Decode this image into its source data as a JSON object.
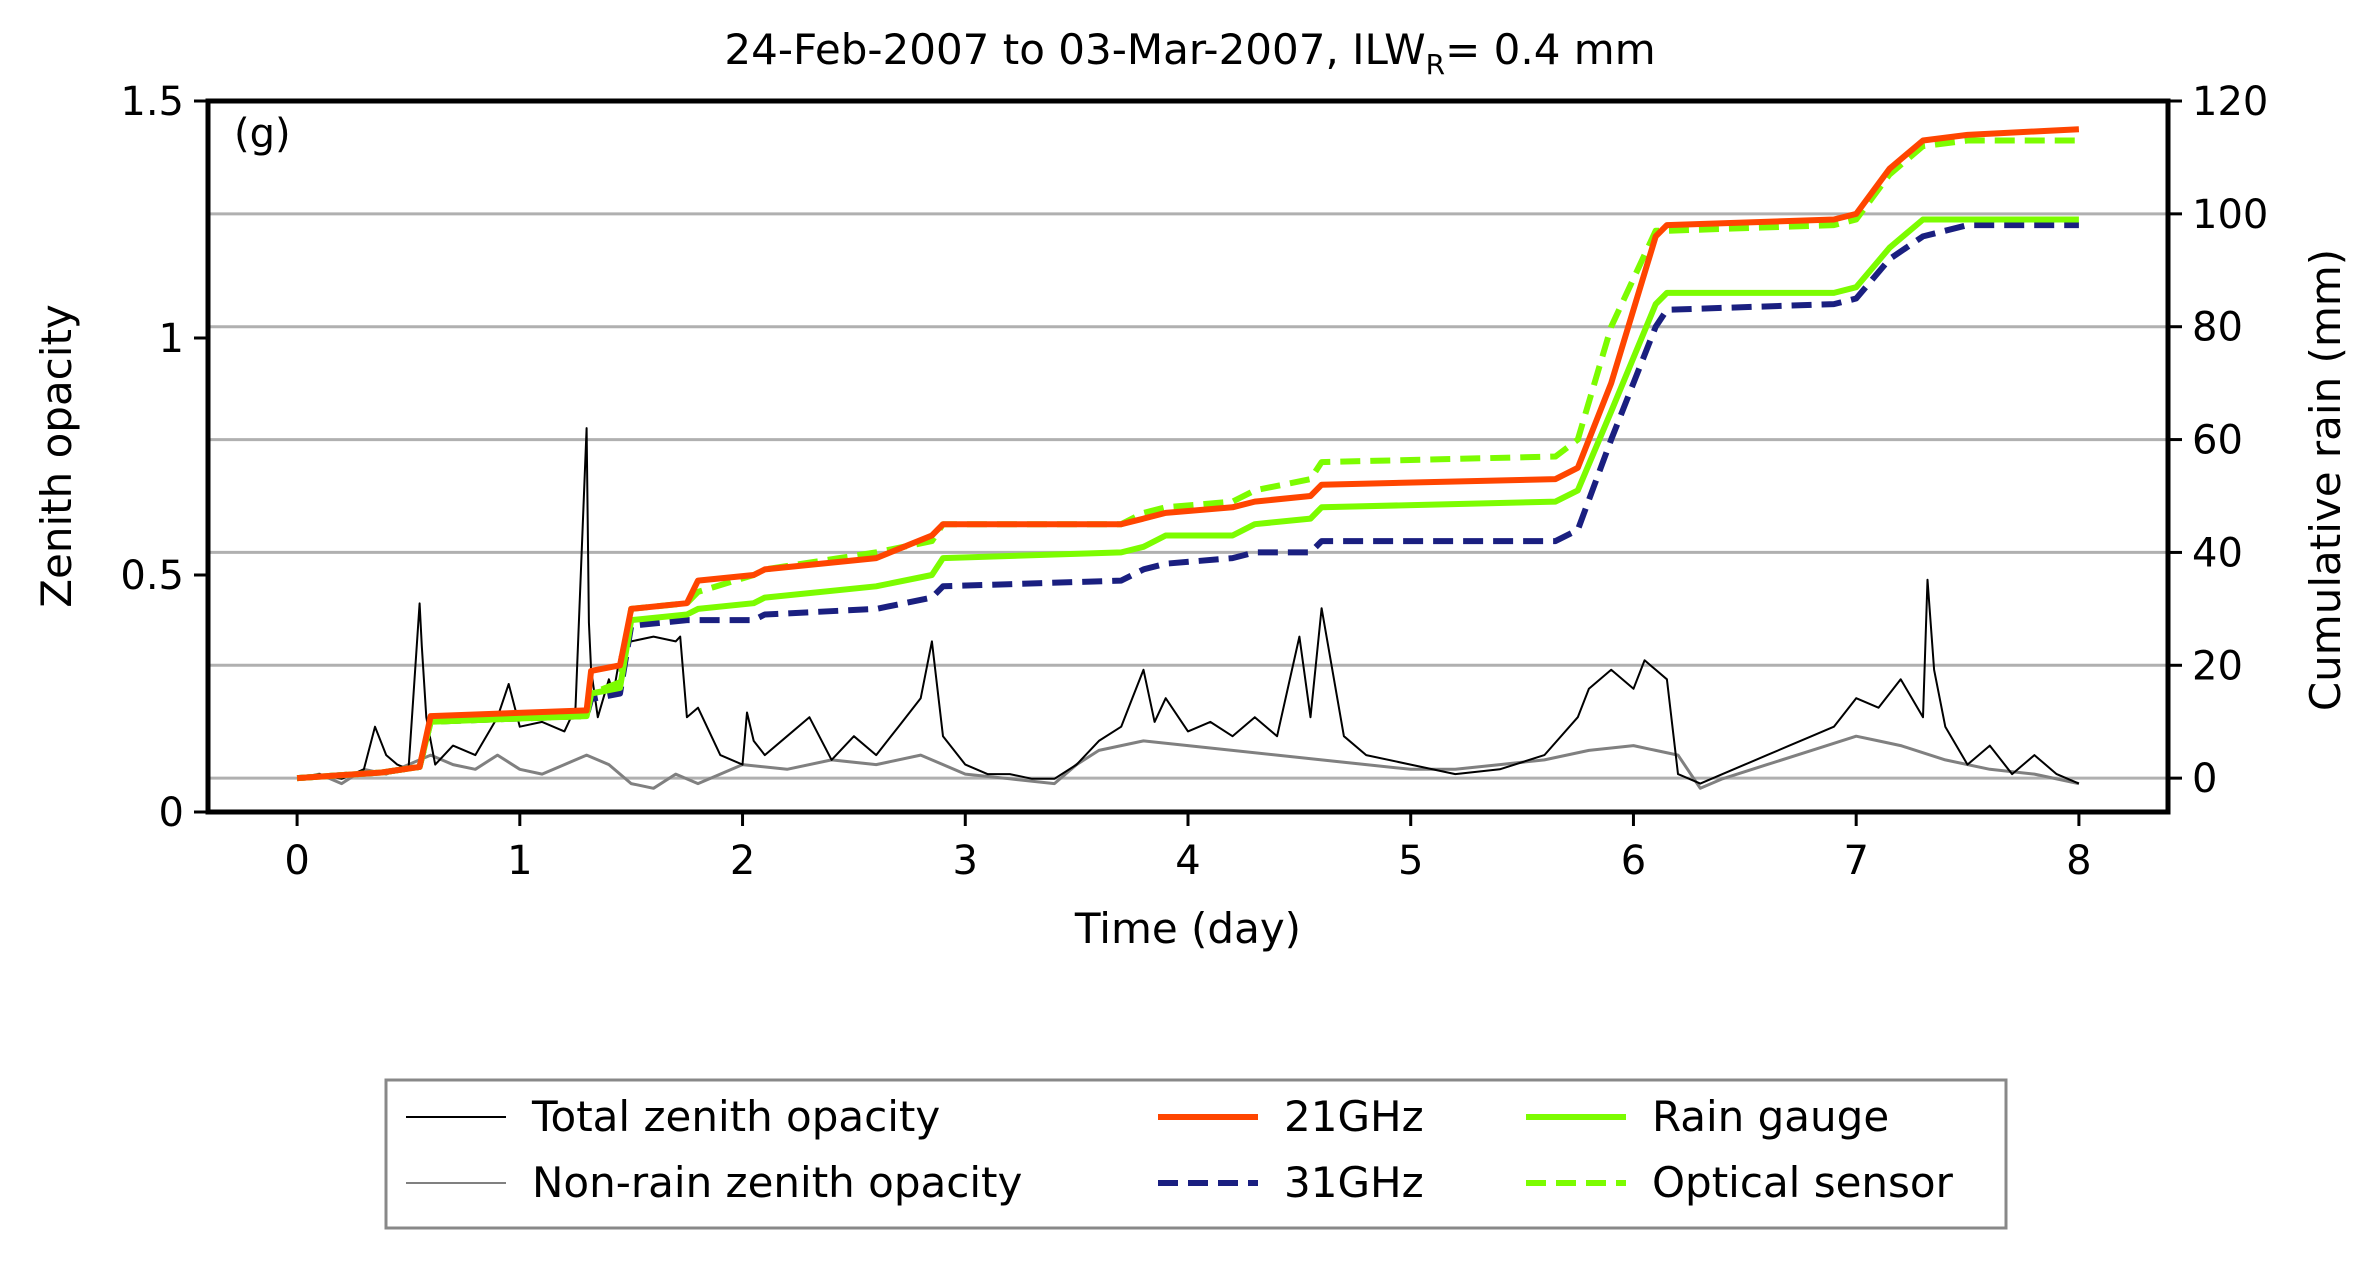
{
  "chart_data": {
    "type": "line",
    "title_main": "24-Feb-2007 to 03-Mar-2007, ILW",
    "title_sub": "R",
    "title_tail": "= 0.4 mm",
    "panel_label": "(g)",
    "xlabel": "Time (day)",
    "ylabel_left": "Zenith opacity",
    "ylabel_right": "Cumulative rain (mm)",
    "xlim": [
      -0.4,
      8.4
    ],
    "ylim_left": [
      0,
      1.5
    ],
    "ylim_right": [
      -6,
      120
    ],
    "x_ticks": [
      "0",
      "1",
      "2",
      "3",
      "4",
      "5",
      "6",
      "7",
      "8"
    ],
    "y_left_ticks": [
      "0",
      "0.5",
      "1",
      "1.5"
    ],
    "y_right_ticks": [
      "0",
      "20",
      "40",
      "60",
      "80",
      "100",
      "120"
    ],
    "right_gridlines": [
      0,
      20,
      40,
      60,
      80,
      100
    ],
    "series": [
      {
        "name": "Total zenith opacity",
        "axis": "left",
        "color": "#000000",
        "style": "solid",
        "width": 2,
        "x": [
          0,
          0.1,
          0.2,
          0.3,
          0.35,
          0.4,
          0.45,
          0.5,
          0.55,
          0.56,
          0.58,
          0.6,
          0.62,
          0.7,
          0.8,
          0.9,
          0.95,
          1.0,
          1.1,
          1.2,
          1.25,
          1.3,
          1.31,
          1.32,
          1.35,
          1.4,
          1.42,
          1.45,
          1.5,
          1.6,
          1.7,
          1.72,
          1.75,
          1.8,
          1.9,
          2.0,
          2.02,
          2.05,
          2.1,
          2.2,
          2.3,
          2.4,
          2.5,
          2.6,
          2.7,
          2.8,
          2.85,
          2.9,
          3.0,
          3.1,
          3.2,
          3.3,
          3.4,
          3.5,
          3.6,
          3.7,
          3.75,
          3.8,
          3.85,
          3.9,
          4.0,
          4.1,
          4.2,
          4.3,
          4.4,
          4.5,
          4.55,
          4.6,
          4.7,
          4.8,
          5.0,
          5.2,
          5.4,
          5.6,
          5.75,
          5.8,
          5.9,
          6.0,
          6.05,
          6.1,
          6.15,
          6.2,
          6.3,
          6.4,
          6.5,
          6.6,
          6.7,
          6.8,
          6.9,
          7.0,
          7.1,
          7.2,
          7.25,
          7.3,
          7.32,
          7.35,
          7.4,
          7.5,
          7.6,
          7.7,
          7.8,
          7.9,
          8.0
        ],
        "values": [
          0.07,
          0.08,
          0.07,
          0.09,
          0.18,
          0.12,
          0.1,
          0.09,
          0.44,
          0.35,
          0.2,
          0.15,
          0.1,
          0.14,
          0.12,
          0.2,
          0.27,
          0.18,
          0.19,
          0.17,
          0.22,
          0.81,
          0.4,
          0.3,
          0.2,
          0.28,
          0.25,
          0.33,
          0.36,
          0.37,
          0.36,
          0.37,
          0.2,
          0.22,
          0.12,
          0.1,
          0.21,
          0.15,
          0.12,
          0.16,
          0.2,
          0.11,
          0.16,
          0.12,
          0.18,
          0.24,
          0.36,
          0.16,
          0.1,
          0.08,
          0.08,
          0.07,
          0.07,
          0.1,
          0.15,
          0.18,
          0.24,
          0.3,
          0.19,
          0.24,
          0.17,
          0.19,
          0.16,
          0.2,
          0.16,
          0.37,
          0.2,
          0.43,
          0.16,
          0.12,
          0.1,
          0.08,
          0.09,
          0.12,
          0.2,
          0.26,
          0.3,
          0.26,
          0.32,
          0.3,
          0.28,
          0.08,
          0.06,
          0.08,
          0.1,
          0.12,
          0.14,
          0.16,
          0.18,
          0.24,
          0.22,
          0.28,
          0.24,
          0.2,
          0.49,
          0.3,
          0.18,
          0.1,
          0.14,
          0.08,
          0.12,
          0.08,
          0.06
        ]
      },
      {
        "name": "Non-rain zenith opacity",
        "axis": "left",
        "color": "#808080",
        "style": "solid",
        "width": 3,
        "x": [
          0,
          0.1,
          0.2,
          0.3,
          0.4,
          0.5,
          0.6,
          0.7,
          0.8,
          0.9,
          1.0,
          1.1,
          1.2,
          1.3,
          1.4,
          1.5,
          1.6,
          1.7,
          1.8,
          1.9,
          2.0,
          2.2,
          2.4,
          2.6,
          2.8,
          3.0,
          3.2,
          3.4,
          3.5,
          3.6,
          3.8,
          4.0,
          4.2,
          4.4,
          4.6,
          4.8,
          5.0,
          5.2,
          5.4,
          5.6,
          5.8,
          6.0,
          6.1,
          6.2,
          6.3,
          6.4,
          6.6,
          6.8,
          7.0,
          7.1,
          7.2,
          7.4,
          7.6,
          7.8,
          8.0
        ],
        "values": [
          0.07,
          0.08,
          0.06,
          0.09,
          0.08,
          0.1,
          0.12,
          0.1,
          0.09,
          0.12,
          0.09,
          0.08,
          0.1,
          0.12,
          0.1,
          0.06,
          0.05,
          0.08,
          0.06,
          0.08,
          0.1,
          0.09,
          0.11,
          0.1,
          0.12,
          0.08,
          0.07,
          0.06,
          0.1,
          0.13,
          0.15,
          0.14,
          0.13,
          0.12,
          0.11,
          0.1,
          0.09,
          0.09,
          0.1,
          0.11,
          0.13,
          0.14,
          0.13,
          0.12,
          0.05,
          0.07,
          0.1,
          0.13,
          0.16,
          0.15,
          0.14,
          0.11,
          0.09,
          0.08,
          0.06
        ]
      },
      {
        "name": "21GHz",
        "axis": "right",
        "color": "#ff4500",
        "style": "solid",
        "width": 6,
        "x": [
          0,
          0.38,
          0.55,
          0.6,
          1.3,
          1.32,
          1.45,
          1.5,
          1.75,
          1.8,
          2.05,
          2.1,
          2.6,
          2.85,
          2.9,
          3.7,
          3.8,
          3.9,
          4.2,
          4.3,
          4.55,
          4.6,
          5.65,
          5.75,
          5.9,
          6.1,
          6.15,
          6.9,
          7.0,
          7.15,
          7.3,
          7.5,
          8.0
        ],
        "values": [
          0,
          1,
          2,
          11,
          12,
          19,
          20,
          30,
          31,
          35,
          36,
          37,
          39,
          43,
          45,
          45,
          46,
          47,
          48,
          49,
          50,
          52,
          53,
          55,
          70,
          96,
          98,
          99,
          100,
          108,
          113,
          114,
          115
        ]
      },
      {
        "name": "31GHz",
        "axis": "right",
        "color": "#1a1f80",
        "style": "dashed",
        "width": 6,
        "x": [
          0,
          0.38,
          0.55,
          0.6,
          1.3,
          1.32,
          1.45,
          1.5,
          1.75,
          1.8,
          2.05,
          2.1,
          2.6,
          2.85,
          2.9,
          3.7,
          3.8,
          3.9,
          4.2,
          4.3,
          4.55,
          4.6,
          5.65,
          5.75,
          5.9,
          6.1,
          6.15,
          6.9,
          7.0,
          7.15,
          7.3,
          7.5,
          8.0
        ],
        "values": [
          0,
          1,
          2,
          10,
          11,
          14,
          15,
          27,
          28,
          28,
          28,
          29,
          30,
          32,
          34,
          35,
          37,
          38,
          39,
          40,
          40,
          42,
          42,
          44,
          60,
          80,
          83,
          84,
          85,
          92,
          96,
          98,
          98
        ]
      },
      {
        "name": "Rain gauge",
        "axis": "right",
        "color": "#7cfc00",
        "style": "solid",
        "width": 6,
        "x": [
          0,
          0.38,
          0.55,
          0.6,
          1.3,
          1.32,
          1.45,
          1.5,
          1.75,
          1.8,
          2.05,
          2.1,
          2.6,
          2.85,
          2.9,
          3.7,
          3.8,
          3.9,
          4.2,
          4.3,
          4.55,
          4.6,
          5.65,
          5.75,
          5.9,
          6.1,
          6.15,
          6.9,
          7.0,
          7.15,
          7.3,
          7.5,
          8.0
        ],
        "values": [
          0,
          1,
          2,
          10,
          11,
          15,
          16,
          28,
          29,
          30,
          31,
          32,
          34,
          36,
          39,
          40,
          41,
          43,
          43,
          45,
          46,
          48,
          49,
          51,
          65,
          84,
          86,
          86,
          87,
          94,
          99,
          99,
          99
        ]
      },
      {
        "name": "Optical sensor",
        "axis": "right",
        "color": "#7cfc00",
        "style": "dashed",
        "width": 6,
        "x": [
          0,
          0.38,
          0.55,
          0.6,
          1.3,
          1.32,
          1.45,
          1.5,
          1.75,
          1.8,
          2.05,
          2.1,
          2.6,
          2.85,
          2.9,
          3.7,
          3.8,
          3.9,
          4.2,
          4.3,
          4.55,
          4.6,
          5.65,
          5.75,
          5.9,
          6.1,
          6.15,
          6.9,
          7.0,
          7.15,
          7.3,
          7.5,
          8.0
        ],
        "values": [
          0,
          1,
          2,
          10,
          11,
          15,
          17,
          30,
          31,
          33,
          36,
          37,
          40,
          42,
          45,
          45,
          47,
          48,
          49,
          51,
          53,
          56,
          57,
          60,
          80,
          97,
          97,
          98,
          99,
          107,
          112,
          113,
          113
        ]
      }
    ],
    "legend": [
      {
        "label": "Total zenith opacity",
        "color": "#000000",
        "style": "solid",
        "width": 2
      },
      {
        "label": "Non-rain zenith opacity",
        "color": "#808080",
        "style": "solid",
        "width": 2
      },
      {
        "label": "21GHz",
        "color": "#ff4500",
        "style": "solid",
        "width": 6
      },
      {
        "label": "31GHz",
        "color": "#1a1f80",
        "style": "dashed",
        "width": 6
      },
      {
        "label": "Rain gauge",
        "color": "#7cfc00",
        "style": "solid",
        "width": 6
      },
      {
        "label": "Optical sensor",
        "color": "#7cfc00",
        "style": "dashed",
        "width": 6
      }
    ],
    "legend_placement": "bottom-center"
  }
}
